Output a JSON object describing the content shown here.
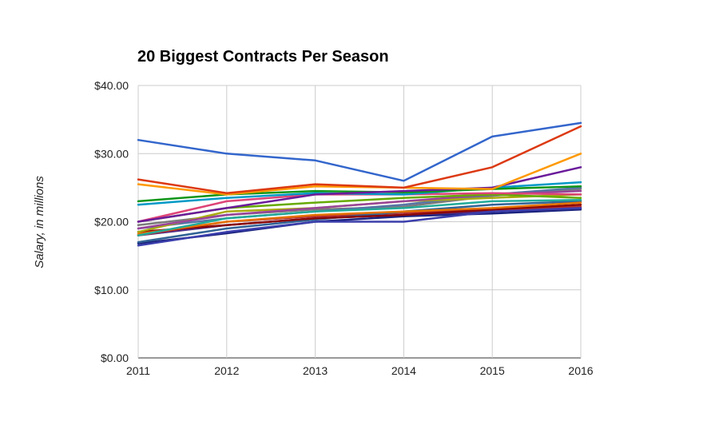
{
  "chart_data": {
    "type": "line",
    "title": "20 Biggest Contracts Per Season",
    "xlabel": "",
    "ylabel": "Salary, in millions",
    "x": [
      "2011",
      "2012",
      "2013",
      "2014",
      "2015",
      "2016"
    ],
    "y_ticks": [
      "$0.00",
      "$10.00",
      "$20.00",
      "$30.00",
      "$40.00"
    ],
    "ylim": [
      0,
      40
    ],
    "grid": true,
    "legend": "none",
    "series": [
      {
        "color": "#3366cc",
        "values": [
          32.0,
          30.0,
          29.0,
          26.0,
          32.5,
          34.5
        ]
      },
      {
        "color": "#dc3912",
        "values": [
          26.2,
          24.2,
          25.5,
          25.0,
          28.0,
          34.0
        ]
      },
      {
        "color": "#ff9900",
        "values": [
          25.5,
          24.0,
          25.2,
          25.0,
          24.8,
          30.0
        ]
      },
      {
        "color": "#6a1b9a",
        "values": [
          20.0,
          22.0,
          24.0,
          24.5,
          25.0,
          28.0
        ]
      },
      {
        "color": "#109618",
        "values": [
          23.0,
          24.0,
          24.5,
          24.3,
          24.8,
          25.2
        ]
      },
      {
        "color": "#0099c6",
        "values": [
          22.5,
          23.5,
          24.2,
          24.0,
          25.0,
          25.8
        ]
      },
      {
        "color": "#dd4477",
        "values": [
          20.0,
          23.0,
          24.0,
          24.0,
          24.2,
          24.0
        ]
      },
      {
        "color": "#66aa00",
        "values": [
          20.0,
          22.0,
          22.8,
          23.5,
          24.0,
          23.5
        ]
      },
      {
        "color": "#994499",
        "values": [
          19.0,
          21.0,
          22.0,
          23.0,
          24.0,
          24.5
        ]
      },
      {
        "color": "#22aa99",
        "values": [
          18.0,
          20.5,
          21.5,
          22.0,
          23.0,
          23.2
        ]
      },
      {
        "color": "#aaaa11",
        "values": [
          18.5,
          21.5,
          22.0,
          23.0,
          23.5,
          24.0
        ]
      },
      {
        "color": "#e67300",
        "values": [
          18.2,
          20.0,
          21.0,
          21.5,
          22.0,
          22.8
        ]
      },
      {
        "color": "#8b0707",
        "values": [
          18.5,
          19.5,
          20.5,
          21.0,
          21.8,
          22.5
        ]
      },
      {
        "color": "#316395",
        "values": [
          17.0,
          19.0,
          20.3,
          21.5,
          22.5,
          23.0
        ]
      },
      {
        "color": "#5574a6",
        "values": [
          19.0,
          20.5,
          21.5,
          22.5,
          24.0,
          25.0
        ]
      },
      {
        "color": "#3b3eac",
        "values": [
          16.5,
          18.5,
          20.0,
          20.0,
          21.5,
          22.0
        ]
      },
      {
        "color": "#b82e2e",
        "values": [
          18.0,
          20.0,
          20.8,
          21.3,
          21.8,
          22.2
        ]
      },
      {
        "color": "#4e2a84",
        "values": [
          18.0,
          19.5,
          20.5,
          21.0,
          21.5,
          22.0
        ]
      },
      {
        "color": "#1a237e",
        "values": [
          16.8,
          18.3,
          20.0,
          20.8,
          21.2,
          21.8
        ]
      },
      {
        "color": "#7b7b7b",
        "values": [
          19.5,
          21.0,
          21.8,
          22.2,
          23.8,
          24.8
        ]
      }
    ]
  }
}
